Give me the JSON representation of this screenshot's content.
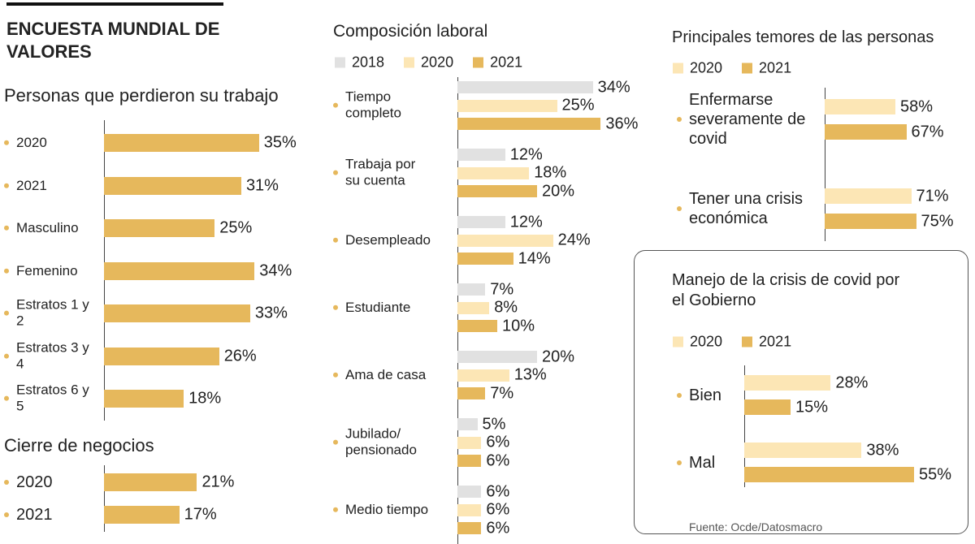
{
  "title": "ENCUESTA MUNDIAL DE VALORES",
  "source": "Fuente: Ocde/Datosmacro",
  "chart_data": [
    {
      "type": "bar",
      "orientation": "horizontal",
      "title": "Personas que perdieron su trabajo",
      "categories": [
        "2020",
        "2021",
        "Masculino",
        "Femenino",
        "Estratos 1 y 2",
        "Estratos 3 y 4",
        "Estratos 6 y 5"
      ],
      "series": [
        {
          "color": "#e6b85c",
          "values": [
            35,
            31,
            25,
            34,
            33,
            26,
            18
          ],
          "value_labels": [
            "35%",
            "31%",
            "25%",
            "34%",
            "33%",
            "26%",
            "18%"
          ]
        }
      ]
    },
    {
      "type": "bar",
      "orientation": "horizontal",
      "title": "Cierre de negocios",
      "categories": [
        "2020",
        "2021"
      ],
      "series": [
        {
          "color": "#e6b85c",
          "values": [
            21,
            17
          ],
          "value_labels": [
            "21%",
            "17%"
          ]
        }
      ]
    },
    {
      "type": "bar",
      "orientation": "horizontal",
      "title": "Composición laboral",
      "categories": [
        "Tiempo completo",
        "Trabaja por su cuenta",
        "Desempleado",
        "Estudiante",
        "Ama de casa",
        "Jubilado/ pensionado",
        "Medio tiempo"
      ],
      "series": [
        {
          "name": "2018",
          "color": "#e1e1e1",
          "values": [
            34,
            12,
            12,
            7,
            20,
            5,
            6
          ],
          "value_labels": [
            "34%",
            "12%",
            "12%",
            "7%",
            "20%",
            "5%",
            "6%"
          ]
        },
        {
          "name": "2020",
          "color": "#fce6b5",
          "values": [
            25,
            18,
            24,
            8,
            13,
            6,
            6
          ],
          "value_labels": [
            "25%",
            "18%",
            "24%",
            "8%",
            "13%",
            "6%",
            "6%"
          ]
        },
        {
          "name": "2021",
          "color": "#e6b85c",
          "values": [
            36,
            20,
            14,
            10,
            7,
            6,
            6
          ],
          "value_labels": [
            "36%",
            "20%",
            "14%",
            "10%",
            "7%",
            "6%",
            "6%"
          ]
        }
      ]
    },
    {
      "type": "bar",
      "orientation": "horizontal",
      "title": "Principales temores de las personas",
      "categories": [
        "Enfermarse severamente de covid",
        "Tener una crisis económica"
      ],
      "series": [
        {
          "name": "2020",
          "color": "#fce6b5",
          "values": [
            58,
            71
          ],
          "value_labels": [
            "58%",
            "71%"
          ]
        },
        {
          "name": "2021",
          "color": "#e6b85c",
          "values": [
            67,
            75
          ],
          "value_labels": [
            "67%",
            "75%"
          ]
        }
      ]
    },
    {
      "type": "bar",
      "orientation": "horizontal",
      "title": "Manejo de la crisis de covid por el Gobierno",
      "categories": [
        "Bien",
        "Mal"
      ],
      "series": [
        {
          "name": "2020",
          "color": "#fce6b5",
          "values": [
            28,
            38
          ],
          "value_labels": [
            "28%",
            "38%"
          ]
        },
        {
          "name": "2021",
          "color": "#e6b85c",
          "values": [
            15,
            55
          ],
          "value_labels": [
            "15%",
            "55%"
          ]
        }
      ]
    }
  ]
}
